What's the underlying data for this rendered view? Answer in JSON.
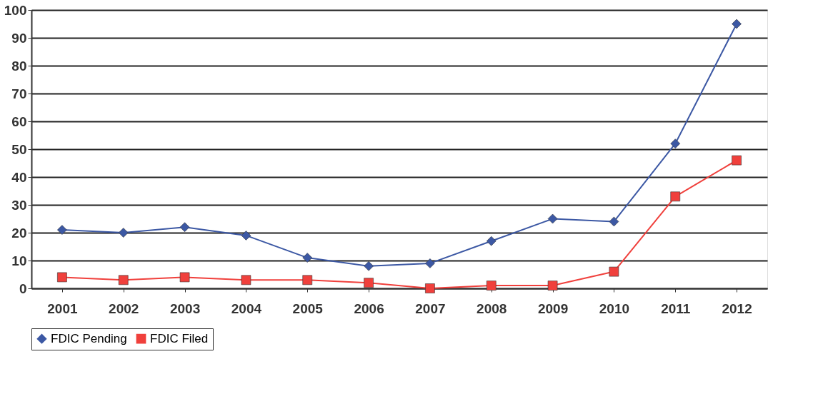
{
  "chart_data": {
    "type": "line",
    "categories": [
      "2001",
      "2002",
      "2003",
      "2004",
      "2005",
      "2006",
      "2007",
      "2008",
      "2009",
      "2010",
      "2011",
      "2012"
    ],
    "series": [
      {
        "name": "FDIC Pending",
        "color": "#3c58a4",
        "marker": "diamond",
        "values": [
          21,
          20,
          22,
          19,
          11,
          8,
          9,
          17,
          25,
          24,
          52,
          95
        ]
      },
      {
        "name": "FDIC Filed",
        "color": "#f0403c",
        "marker": "square",
        "values": [
          4,
          3,
          4,
          3,
          3,
          2,
          0,
          1,
          1,
          6,
          33,
          46
        ]
      }
    ],
    "ylim": [
      0,
      100
    ],
    "yticks": [
      0,
      10,
      20,
      30,
      40,
      50,
      60,
      70,
      80,
      90,
      100
    ],
    "grid": "y",
    "legend": "bottom",
    "line_style": "solid"
  }
}
